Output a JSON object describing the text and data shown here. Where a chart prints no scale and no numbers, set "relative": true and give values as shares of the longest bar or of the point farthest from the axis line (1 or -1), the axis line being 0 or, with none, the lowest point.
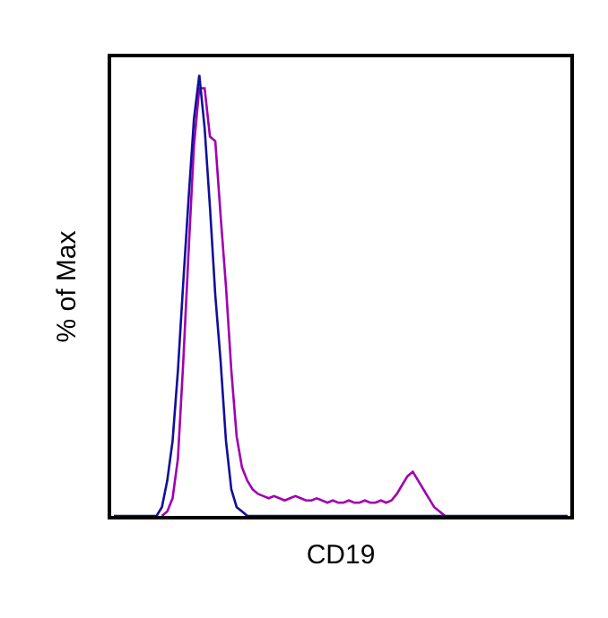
{
  "chart_data": {
    "type": "line",
    "relative": true,
    "xlabel": "CD19",
    "ylabel": "% of Max",
    "marker": "none",
    "line_style": "solid",
    "categories": [
      null,
      null,
      null,
      null,
      null,
      null,
      null,
      null,
      null,
      null,
      null,
      null,
      null,
      null,
      null,
      null,
      null,
      null,
      null,
      null,
      null,
      null,
      null,
      null,
      null,
      null,
      null,
      null,
      null,
      null,
      null,
      null,
      null,
      null,
      null,
      null,
      null,
      null,
      null,
      null,
      null,
      null,
      null,
      null,
      null,
      null,
      null,
      null,
      null,
      null,
      null,
      null,
      null,
      null,
      null,
      null,
      null,
      null,
      null,
      null,
      null,
      null,
      null,
      null,
      null,
      null,
      null,
      null,
      null,
      null,
      null,
      null,
      null,
      null,
      null,
      null,
      null,
      null,
      null,
      null,
      null,
      null,
      null,
      null,
      null,
      null
    ],
    "series": [
      {
        "color": "#a000b0",
        "values": [
          null,
          null,
          null,
          null,
          null,
          null,
          null,
          null,
          null,
          0,
          0.01,
          0.04,
          0.13,
          0.35,
          0.6,
          0.84,
          0.97,
          0.97,
          0.86,
          0.85,
          0.68,
          0.52,
          0.33,
          0.18,
          0.11,
          0.08,
          0.06,
          0.05,
          0.045,
          0.04,
          0.045,
          0.04,
          0.035,
          0.04,
          0.045,
          0.04,
          0.035,
          0.035,
          0.04,
          0.035,
          0.03,
          0.035,
          0.03,
          0.03,
          0.035,
          0.03,
          0.03,
          0.035,
          0.03,
          0.03,
          0.035,
          0.03,
          0.035,
          0.05,
          0.07,
          0.09,
          0.1,
          0.08,
          0.06,
          0.04,
          0.02,
          0.01,
          0,
          null,
          null,
          null,
          null,
          null,
          null,
          null,
          null,
          null,
          null,
          null,
          null,
          null,
          null,
          null,
          null,
          null,
          null,
          null,
          null,
          null,
          null,
          null
        ]
      },
      {
        "color": "#10109a",
        "values": [
          0,
          0,
          0,
          0,
          0,
          0,
          0,
          0,
          0,
          0.02,
          0.08,
          0.17,
          0.33,
          0.53,
          0.72,
          0.9,
          1.0,
          0.88,
          0.7,
          0.5,
          0.35,
          0.17,
          0.06,
          0.02,
          0.01,
          0,
          0,
          0,
          0,
          0,
          0,
          0,
          0,
          0,
          0,
          0,
          0,
          0,
          0,
          0,
          0,
          0,
          0,
          0,
          0,
          0,
          0,
          0,
          0,
          0,
          0,
          0,
          0,
          0,
          0,
          0,
          0,
          0,
          0,
          0,
          0,
          0,
          0,
          0,
          0,
          0,
          0,
          0,
          0,
          0,
          0,
          0,
          0,
          0,
          0,
          0,
          0,
          0,
          0,
          0,
          0,
          0,
          0,
          0,
          0,
          0
        ]
      }
    ]
  }
}
